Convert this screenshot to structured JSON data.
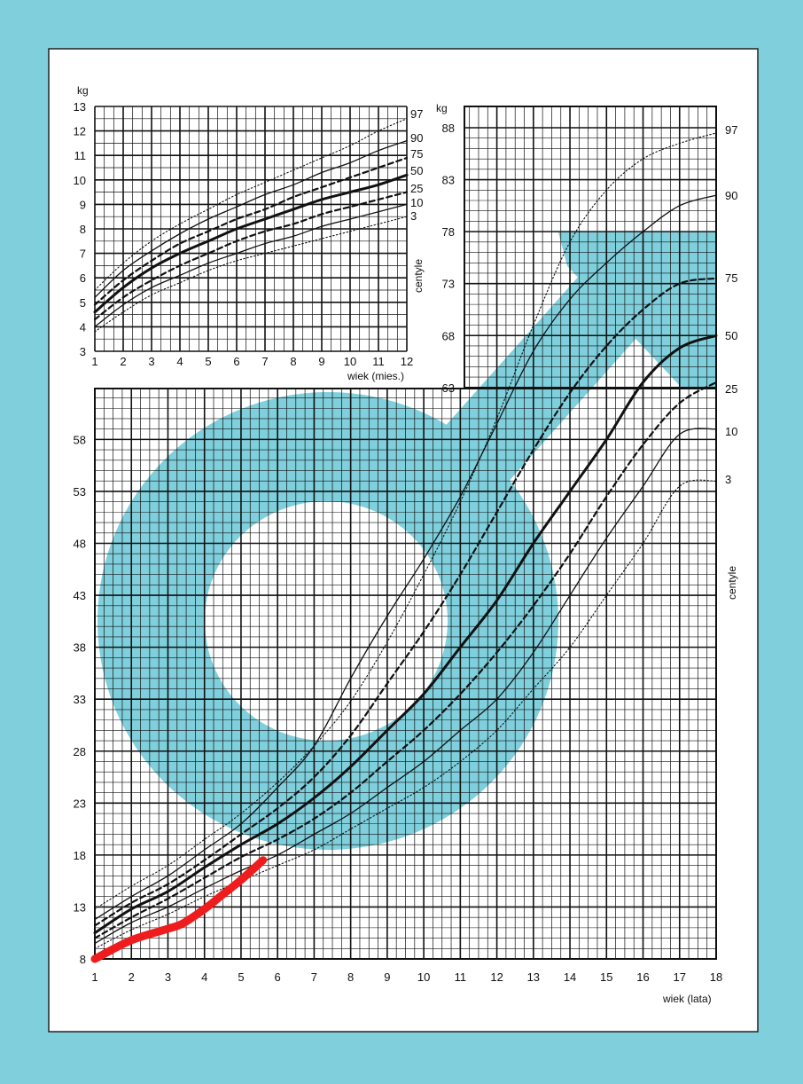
{
  "colors": {
    "background": "#7fcfdc",
    "paper": "#ffffff",
    "symbol": "#7fcfdc",
    "grid": "#111111",
    "marker": "#ee1c1c"
  },
  "chart_data": [
    {
      "type": "line",
      "subject": "weight-for-age (infant)",
      "ylabel": "kg",
      "xlabel": "wiek (mies.)",
      "right_label": "centyle",
      "xlim": [
        1,
        12
      ],
      "ylim": [
        3,
        13
      ],
      "x_ticks": [
        1,
        2,
        3,
        4,
        5,
        6,
        7,
        8,
        9,
        10,
        11,
        12
      ],
      "y_ticks": [
        3,
        4,
        5,
        6,
        7,
        8,
        9,
        10,
        11,
        12,
        13
      ],
      "grid": true,
      "series": [
        {
          "name": "97",
          "style": "dotted",
          "x": [
            1,
            2,
            3,
            4,
            5,
            6,
            7,
            8,
            9,
            10,
            11,
            12
          ],
          "y": [
            5.5,
            6.6,
            7.5,
            8.2,
            8.8,
            9.4,
            9.9,
            10.4,
            10.9,
            11.4,
            12.0,
            12.5
          ]
        },
        {
          "name": "90",
          "style": "solid",
          "x": [
            1,
            2,
            3,
            4,
            5,
            6,
            7,
            8,
            9,
            10,
            11,
            12
          ],
          "y": [
            5.2,
            6.3,
            7.1,
            7.8,
            8.4,
            8.9,
            9.4,
            9.8,
            10.3,
            10.7,
            11.2,
            11.6
          ]
        },
        {
          "name": "75",
          "style": "dashed",
          "x": [
            1,
            2,
            3,
            4,
            5,
            6,
            7,
            8,
            9,
            10,
            11,
            12
          ],
          "y": [
            4.9,
            5.9,
            6.7,
            7.4,
            7.9,
            8.4,
            8.8,
            9.3,
            9.7,
            10.1,
            10.5,
            10.9
          ]
        },
        {
          "name": "50",
          "style": "bold",
          "x": [
            1,
            2,
            3,
            4,
            5,
            6,
            7,
            8,
            9,
            10,
            11,
            12
          ],
          "y": [
            4.6,
            5.6,
            6.4,
            7.0,
            7.5,
            8.0,
            8.4,
            8.8,
            9.2,
            9.5,
            9.8,
            10.2
          ]
        },
        {
          "name": "25",
          "style": "dashed",
          "x": [
            1,
            2,
            3,
            4,
            5,
            6,
            7,
            8,
            9,
            10,
            11,
            12
          ],
          "y": [
            4.3,
            5.2,
            5.9,
            6.5,
            7.0,
            7.5,
            7.9,
            8.2,
            8.6,
            8.9,
            9.2,
            9.5
          ]
        },
        {
          "name": "10",
          "style": "solid",
          "x": [
            1,
            2,
            3,
            4,
            5,
            6,
            7,
            8,
            9,
            10,
            11,
            12
          ],
          "y": [
            4.0,
            4.9,
            5.6,
            6.1,
            6.6,
            7.0,
            7.4,
            7.7,
            8.1,
            8.4,
            8.7,
            9.0
          ]
        },
        {
          "name": "3",
          "style": "dotted",
          "x": [
            1,
            2,
            3,
            4,
            5,
            6,
            7,
            8,
            9,
            10,
            11,
            12
          ],
          "y": [
            3.8,
            4.6,
            5.3,
            5.8,
            6.3,
            6.7,
            7.0,
            7.3,
            7.6,
            7.9,
            8.2,
            8.5
          ]
        }
      ]
    },
    {
      "type": "line",
      "subject": "weight-for-age (1-18 years)",
      "ylabel": "kg",
      "xlabel": "wiek (lata)",
      "right_label": "centyle",
      "xlim": [
        1,
        18
      ],
      "ylim": [
        8,
        88
      ],
      "x_ticks": [
        1,
        2,
        3,
        4,
        5,
        6,
        7,
        8,
        9,
        10,
        11,
        12,
        13,
        14,
        15,
        16,
        17,
        18
      ],
      "y_ticks": [
        8,
        13,
        18,
        23,
        28,
        33,
        38,
        43,
        48,
        53,
        58,
        63,
        68,
        73,
        78,
        83,
        88
      ],
      "grid": true,
      "series": [
        {
          "name": "97",
          "style": "dotted",
          "x": [
            1,
            2,
            3,
            4,
            5,
            6,
            7,
            8,
            9,
            10,
            11,
            12,
            13,
            14,
            15,
            16,
            17,
            18
          ],
          "y": [
            12.8,
            15.0,
            17.0,
            19.5,
            22.0,
            25.0,
            28.5,
            32.8,
            38.5,
            45.0,
            52.0,
            60.0,
            69.0,
            77.0,
            82.0,
            85.0,
            86.5,
            87.5
          ]
        },
        {
          "name": "90",
          "style": "solid",
          "x": [
            1,
            2,
            3,
            4,
            5,
            6,
            7,
            8,
            9,
            10,
            11,
            12,
            13,
            14,
            15,
            16,
            17,
            18
          ],
          "y": [
            11.8,
            14.0,
            16.0,
            18.5,
            21.0,
            24.5,
            28.5,
            35.0,
            41.0,
            46.5,
            52.5,
            59.5,
            66.5,
            71.5,
            75.0,
            78.0,
            80.5,
            81.5
          ]
        },
        {
          "name": "75",
          "style": "dashed",
          "x": [
            1,
            2,
            3,
            4,
            5,
            6,
            7,
            8,
            9,
            10,
            11,
            12,
            13,
            14,
            15,
            16,
            17,
            18
          ],
          "y": [
            11.2,
            13.4,
            15.2,
            17.5,
            20.0,
            22.5,
            25.5,
            29.5,
            34.5,
            39.5,
            45.0,
            51.0,
            57.0,
            62.5,
            67.0,
            70.5,
            73.0,
            73.5
          ]
        },
        {
          "name": "50",
          "style": "bold",
          "x": [
            1,
            2,
            3,
            4,
            5,
            6,
            7,
            8,
            9,
            10,
            11,
            12,
            13,
            14,
            15,
            16,
            17,
            18
          ],
          "y": [
            10.5,
            12.8,
            14.5,
            16.8,
            19.0,
            21.0,
            23.5,
            26.5,
            30.0,
            33.5,
            38.0,
            42.5,
            48.0,
            53.0,
            58.0,
            63.5,
            66.8,
            68.0
          ]
        },
        {
          "name": "25",
          "style": "dashed",
          "x": [
            1,
            2,
            3,
            4,
            5,
            6,
            7,
            8,
            9,
            10,
            11,
            12,
            13,
            14,
            15,
            16,
            17,
            18
          ],
          "y": [
            10.0,
            12.0,
            13.8,
            15.8,
            17.8,
            19.5,
            21.5,
            24.0,
            27.0,
            30.0,
            33.5,
            37.5,
            42.0,
            47.0,
            52.5,
            57.5,
            61.5,
            63.5
          ]
        },
        {
          "name": "10",
          "style": "solid",
          "x": [
            1,
            2,
            3,
            4,
            5,
            6,
            7,
            8,
            9,
            10,
            11,
            12,
            13,
            14,
            15,
            16,
            17,
            18
          ],
          "y": [
            9.5,
            11.5,
            13.0,
            14.8,
            16.5,
            18.0,
            20.0,
            22.0,
            24.5,
            27.0,
            30.0,
            33.0,
            37.5,
            43.0,
            48.5,
            53.5,
            58.5,
            59.0
          ]
        },
        {
          "name": "3",
          "style": "dotted",
          "x": [
            1,
            2,
            3,
            4,
            5,
            6,
            7,
            8,
            9,
            10,
            11,
            12,
            13,
            14,
            15,
            16,
            17,
            18
          ],
          "y": [
            9.0,
            10.8,
            12.3,
            14.0,
            15.5,
            17.0,
            18.5,
            20.5,
            22.5,
            24.5,
            27.0,
            30.0,
            34.0,
            38.0,
            43.0,
            48.0,
            53.5,
            54.0
          ]
        }
      ],
      "marker_line": {
        "x": [
          1,
          2,
          3,
          3.4,
          4,
          4.5,
          5,
          5.6
        ],
        "y": [
          8.0,
          9.8,
          10.9,
          11.4,
          12.8,
          14.2,
          15.6,
          17.5
        ]
      }
    }
  ]
}
